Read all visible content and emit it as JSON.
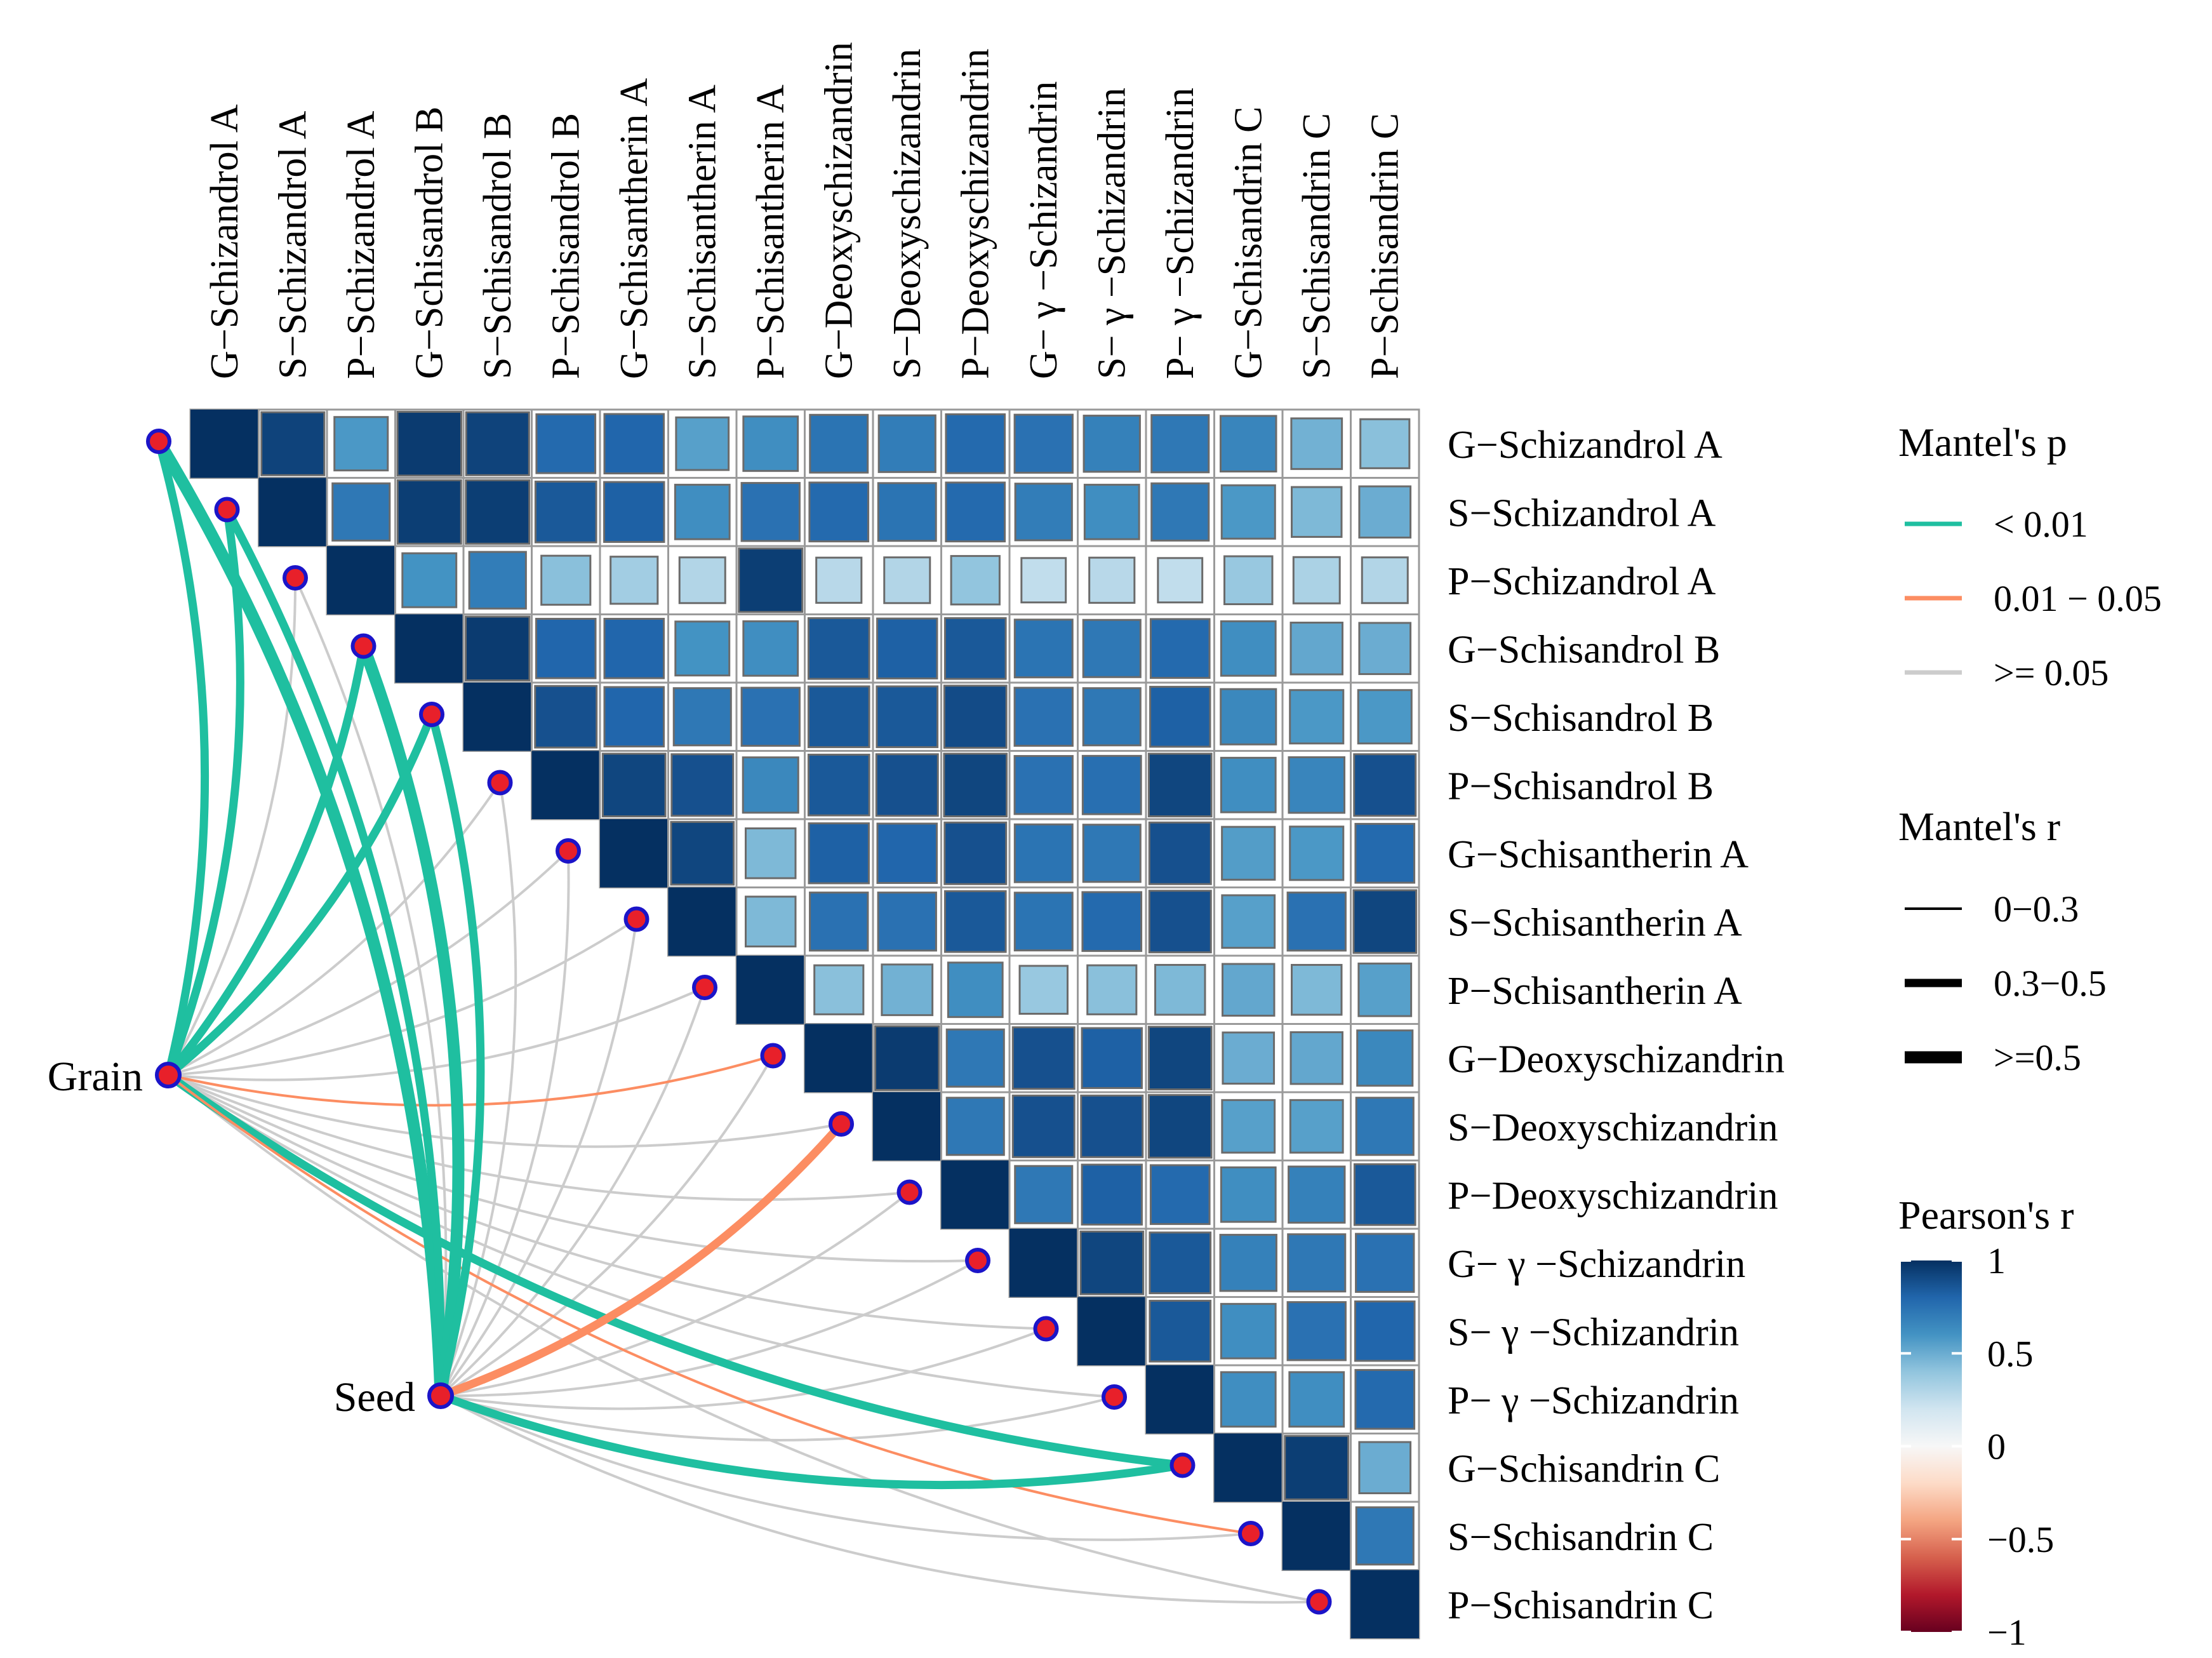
{
  "chart_data": {
    "type": "heatmap",
    "title": "",
    "variables": [
      "G−Schizandrol A",
      "S−Schizandrol A",
      "P−Schizandrol A",
      "G−Schisandrol B",
      "S−Schisandrol B",
      "P−Schisandrol B",
      "G−Schisantherin A",
      "S−Schisantherin A",
      "P−Schisantherin A",
      "G−Deoxyschizandrin",
      "S−Deoxyschizandrin",
      "P−Deoxyschizandrin",
      "G− γ −Schizandrin",
      "S− γ −Schizandrin",
      "P− γ −Schizandrin",
      "G−Schisandrin C",
      "S−Schisandrin C",
      "P−Schisandrin C"
    ],
    "pearson_r": [
      [
        1.0,
        0.93,
        0.58,
        0.96,
        0.93,
        0.78,
        0.8,
        0.55,
        0.62,
        0.74,
        0.7,
        0.78,
        0.75,
        0.68,
        0.72,
        0.66,
        0.48,
        0.42
      ],
      [
        null,
        1.0,
        0.72,
        0.95,
        0.95,
        0.85,
        0.82,
        0.62,
        0.75,
        0.78,
        0.74,
        0.78,
        0.7,
        0.62,
        0.72,
        0.58,
        0.45,
        0.5
      ],
      [
        null,
        null,
        1.0,
        0.6,
        0.7,
        0.42,
        0.35,
        0.3,
        0.95,
        0.28,
        0.3,
        0.4,
        0.25,
        0.28,
        0.25,
        0.38,
        0.32,
        0.3
      ],
      [
        null,
        null,
        null,
        1.0,
        0.96,
        0.8,
        0.8,
        0.6,
        0.62,
        0.85,
        0.82,
        0.85,
        0.74,
        0.72,
        0.78,
        0.62,
        0.52,
        0.5
      ],
      [
        null,
        null,
        null,
        null,
        1.0,
        0.88,
        0.8,
        0.72,
        0.75,
        0.85,
        0.85,
        0.9,
        0.75,
        0.72,
        0.82,
        0.65,
        0.58,
        0.58
      ],
      [
        null,
        null,
        null,
        null,
        null,
        1.0,
        0.92,
        0.88,
        0.65,
        0.85,
        0.88,
        0.92,
        0.75,
        0.76,
        0.92,
        0.62,
        0.66,
        0.88
      ],
      [
        null,
        null,
        null,
        null,
        null,
        null,
        1.0,
        0.92,
        0.45,
        0.82,
        0.8,
        0.88,
        0.74,
        0.72,
        0.88,
        0.56,
        0.58,
        0.78
      ],
      [
        null,
        null,
        null,
        null,
        null,
        null,
        null,
        1.0,
        0.45,
        0.75,
        0.75,
        0.85,
        0.74,
        0.78,
        0.88,
        0.55,
        0.75,
        0.92
      ],
      [
        null,
        null,
        null,
        null,
        null,
        null,
        null,
        null,
        1.0,
        0.42,
        0.48,
        0.62,
        0.38,
        0.42,
        0.45,
        0.52,
        0.45,
        0.55
      ],
      [
        null,
        null,
        null,
        null,
        null,
        null,
        null,
        null,
        null,
        1.0,
        0.96,
        0.72,
        0.88,
        0.82,
        0.92,
        0.5,
        0.52,
        0.65
      ],
      [
        null,
        null,
        null,
        null,
        null,
        null,
        null,
        null,
        null,
        null,
        1.0,
        0.72,
        0.88,
        0.88,
        0.92,
        0.55,
        0.55,
        0.72
      ],
      [
        null,
        null,
        null,
        null,
        null,
        null,
        null,
        null,
        null,
        null,
        null,
        1.0,
        0.72,
        0.82,
        0.78,
        0.62,
        0.68,
        0.85
      ],
      [
        null,
        null,
        null,
        null,
        null,
        null,
        null,
        null,
        null,
        null,
        null,
        null,
        1.0,
        0.92,
        0.85,
        0.68,
        0.72,
        0.75
      ],
      [
        null,
        null,
        null,
        null,
        null,
        null,
        null,
        null,
        null,
        null,
        null,
        null,
        null,
        1.0,
        0.85,
        0.62,
        0.75,
        0.8
      ],
      [
        null,
        null,
        null,
        null,
        null,
        null,
        null,
        null,
        null,
        null,
        null,
        null,
        null,
        null,
        1.0,
        0.62,
        0.62,
        0.78
      ],
      [
        null,
        null,
        null,
        null,
        null,
        null,
        null,
        null,
        null,
        null,
        null,
        null,
        null,
        null,
        null,
        1.0,
        0.95,
        0.5
      ],
      [
        null,
        null,
        null,
        null,
        null,
        null,
        null,
        null,
        null,
        null,
        null,
        null,
        null,
        null,
        null,
        null,
        1.0,
        0.72
      ],
      [
        null,
        null,
        null,
        null,
        null,
        null,
        null,
        null,
        null,
        null,
        null,
        null,
        null,
        null,
        null,
        null,
        null,
        1.0
      ]
    ],
    "env_factors": [
      "Grain",
      "Seed"
    ],
    "mantel": [
      {
        "env": "Grain",
        "target": 0,
        "r_class": "0.3−0.5",
        "p_class": "< 0.01"
      },
      {
        "env": "Grain",
        "target": 1,
        "r_class": "0.3−0.5",
        "p_class": "< 0.01"
      },
      {
        "env": "Grain",
        "target": 2,
        "r_class": "0−0.3",
        "p_class": ">= 0.05"
      },
      {
        "env": "Grain",
        "target": 3,
        "r_class": "0.3−0.5",
        "p_class": "< 0.01"
      },
      {
        "env": "Grain",
        "target": 4,
        "r_class": "0.3−0.5",
        "p_class": "< 0.01"
      },
      {
        "env": "Grain",
        "target": 5,
        "r_class": "0−0.3",
        "p_class": ">= 0.05"
      },
      {
        "env": "Grain",
        "target": 6,
        "r_class": "0−0.3",
        "p_class": ">= 0.05"
      },
      {
        "env": "Grain",
        "target": 7,
        "r_class": "0−0.3",
        "p_class": ">= 0.05"
      },
      {
        "env": "Grain",
        "target": 8,
        "r_class": "0−0.3",
        "p_class": ">= 0.05"
      },
      {
        "env": "Grain",
        "target": 9,
        "r_class": "0−0.3",
        "p_class": "0.01 − 0.05"
      },
      {
        "env": "Grain",
        "target": 10,
        "r_class": "0−0.3",
        "p_class": ">= 0.05"
      },
      {
        "env": "Grain",
        "target": 11,
        "r_class": "0−0.3",
        "p_class": ">= 0.05"
      },
      {
        "env": "Grain",
        "target": 12,
        "r_class": "0−0.3",
        "p_class": ">= 0.05"
      },
      {
        "env": "Grain",
        "target": 13,
        "r_class": "0−0.3",
        "p_class": ">= 0.05"
      },
      {
        "env": "Grain",
        "target": 14,
        "r_class": "0−0.3",
        "p_class": ">= 0.05"
      },
      {
        "env": "Grain",
        "target": 15,
        "r_class": "0.3−0.5",
        "p_class": "< 0.01"
      },
      {
        "env": "Grain",
        "target": 16,
        "r_class": "0−0.3",
        "p_class": "0.01 − 0.05"
      },
      {
        "env": "Grain",
        "target": 17,
        "r_class": "0−0.3",
        "p_class": ">= 0.05"
      },
      {
        "env": "Seed",
        "target": 0,
        "r_class": ">=0.5",
        "p_class": "< 0.01"
      },
      {
        "env": "Seed",
        "target": 1,
        "r_class": "0.3−0.5",
        "p_class": "< 0.01"
      },
      {
        "env": "Seed",
        "target": 2,
        "r_class": "0−0.3",
        "p_class": ">= 0.05"
      },
      {
        "env": "Seed",
        "target": 3,
        "r_class": ">=0.5",
        "p_class": "< 0.01"
      },
      {
        "env": "Seed",
        "target": 4,
        "r_class": "0.3−0.5",
        "p_class": "< 0.01"
      },
      {
        "env": "Seed",
        "target": 5,
        "r_class": "0−0.3",
        "p_class": ">= 0.05"
      },
      {
        "env": "Seed",
        "target": 6,
        "r_class": "0−0.3",
        "p_class": ">= 0.05"
      },
      {
        "env": "Seed",
        "target": 7,
        "r_class": "0−0.3",
        "p_class": ">= 0.05"
      },
      {
        "env": "Seed",
        "target": 8,
        "r_class": "0−0.3",
        "p_class": ">= 0.05"
      },
      {
        "env": "Seed",
        "target": 9,
        "r_class": "0−0.3",
        "p_class": ">= 0.05"
      },
      {
        "env": "Seed",
        "target": 10,
        "r_class": "0.3−0.5",
        "p_class": "0.01 − 0.05"
      },
      {
        "env": "Seed",
        "target": 11,
        "r_class": "0−0.3",
        "p_class": ">= 0.05"
      },
      {
        "env": "Seed",
        "target": 12,
        "r_class": "0−0.3",
        "p_class": ">= 0.05"
      },
      {
        "env": "Seed",
        "target": 13,
        "r_class": "0−0.3",
        "p_class": ">= 0.05"
      },
      {
        "env": "Seed",
        "target": 14,
        "r_class": "0−0.3",
        "p_class": ">= 0.05"
      },
      {
        "env": "Seed",
        "target": 15,
        "r_class": "0.3−0.5",
        "p_class": "< 0.01"
      },
      {
        "env": "Seed",
        "target": 16,
        "r_class": "0−0.3",
        "p_class": ">= 0.05"
      },
      {
        "env": "Seed",
        "target": 17,
        "r_class": "0−0.3",
        "p_class": ">= 0.05"
      }
    ],
    "legend": {
      "mantel_p": {
        "title": "Mantel's p",
        "items": [
          {
            "label": "< 0.01",
            "color": "#1fbfa0"
          },
          {
            "label": "0.01 − 0.05",
            "color": "#fc8d62"
          },
          {
            "label": ">= 0.05",
            "color": "#cccccc"
          }
        ]
      },
      "mantel_r": {
        "title": "Mantel's r",
        "items": [
          {
            "label": "0−0.3",
            "width_class": "thin"
          },
          {
            "label": "0.3−0.5",
            "width_class": "medium"
          },
          {
            "label": ">=0.5",
            "width_class": "thick"
          }
        ]
      },
      "pearson_r": {
        "title": "Pearson's r",
        "ticks": [
          "1",
          "0.5",
          "0",
          "−0.5",
          "−1"
        ],
        "tick_values": [
          1,
          0.5,
          0,
          -0.5,
          -1
        ],
        "range": [
          -1,
          1
        ]
      }
    },
    "colors": {
      "scale": [
        "#67001f",
        "#b2182b",
        "#d6604d",
        "#f4a582",
        "#fddbc7",
        "#f7f7f7",
        "#d1e5f0",
        "#92c5de",
        "#4393c3",
        "#2166ac",
        "#053061"
      ],
      "node_fill": "#e8202a",
      "node_stroke": "#1b14c8",
      "cell_border": "#9a9a9a"
    }
  }
}
